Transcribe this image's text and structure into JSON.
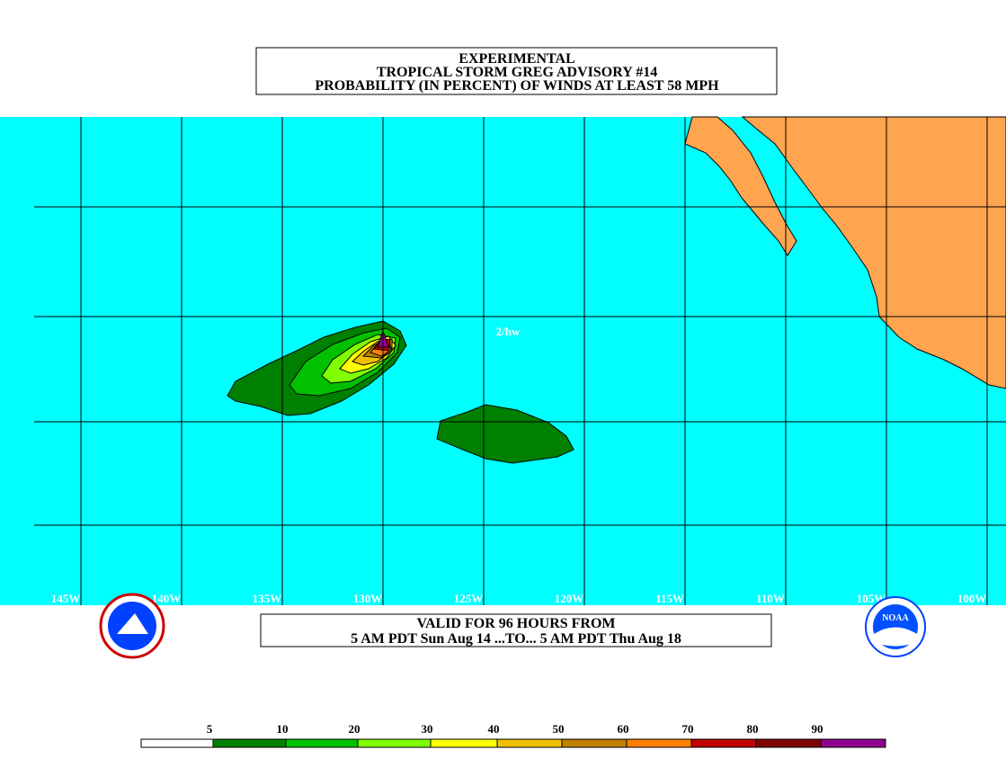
{
  "header": {
    "lines": [
      "EXPERIMENTAL",
      "TROPICAL STORM GREG ADVISORY #14",
      "PROBABILITY (IN PERCENT) OF WINDS AT LEAST 58 MPH"
    ]
  },
  "map": {
    "lon_labels": [
      "145W",
      "140W",
      "135W",
      "130W",
      "125W",
      "120W",
      "115W",
      "110W",
      "105W",
      "100W"
    ],
    "annotation": "2/hw"
  },
  "footer": {
    "lines": [
      "VALID FOR 96 HOURS FROM",
      "5 AM PDT Sun Aug 14 ...TO... 5 AM PDT Thu Aug 18"
    ]
  },
  "legend": {
    "labels": [
      5,
      10,
      20,
      30,
      40,
      50,
      60,
      70,
      80,
      90
    ],
    "colors": [
      "#ffffff",
      "#008000",
      "#00c000",
      "#80ff00",
      "#ffff00",
      "#f0c000",
      "#c08000",
      "#ff8000",
      "#c00000",
      "#800000",
      "#900090"
    ]
  }
}
